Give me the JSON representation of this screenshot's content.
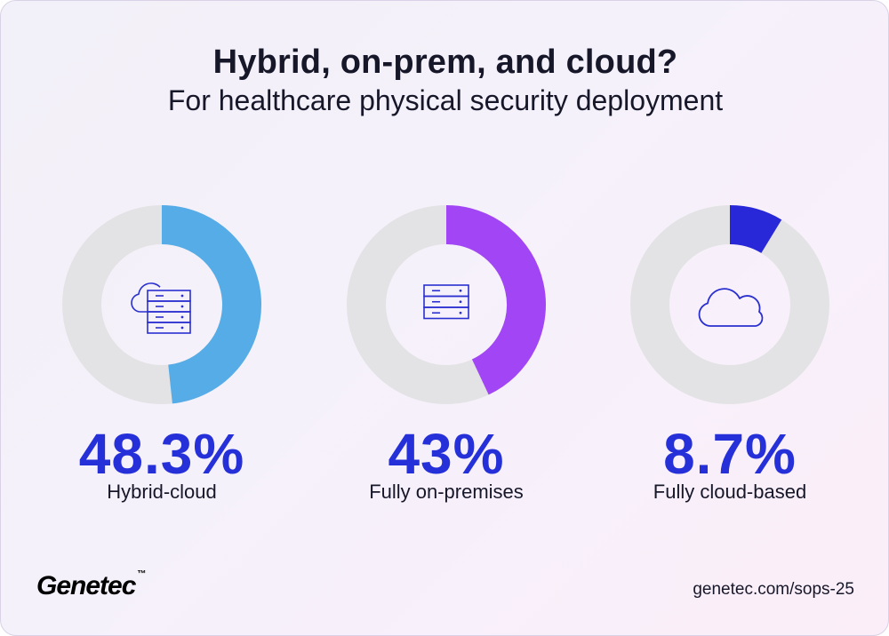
{
  "header": {
    "title": "Hybrid, on-prem, and cloud?",
    "subtitle": "For healthcare physical security deployment"
  },
  "chart_data": {
    "type": "pie",
    "categories": [
      "Hybrid-cloud",
      "Fully on-premises",
      "Fully cloud-based"
    ],
    "values": [
      48.3,
      43,
      8.7
    ],
    "value_labels": [
      "48.3%",
      "43%",
      "8.7%"
    ],
    "colors": [
      "#56ace6",
      "#a245f5",
      "#2828d8"
    ],
    "track_color": "#e3e3e5",
    "icons": [
      "cloud-server-icon",
      "server-icon",
      "cloud-icon"
    ]
  },
  "footer": {
    "logo": "Genetec",
    "trademark": "™",
    "url": "genetec.com/sops-25"
  }
}
